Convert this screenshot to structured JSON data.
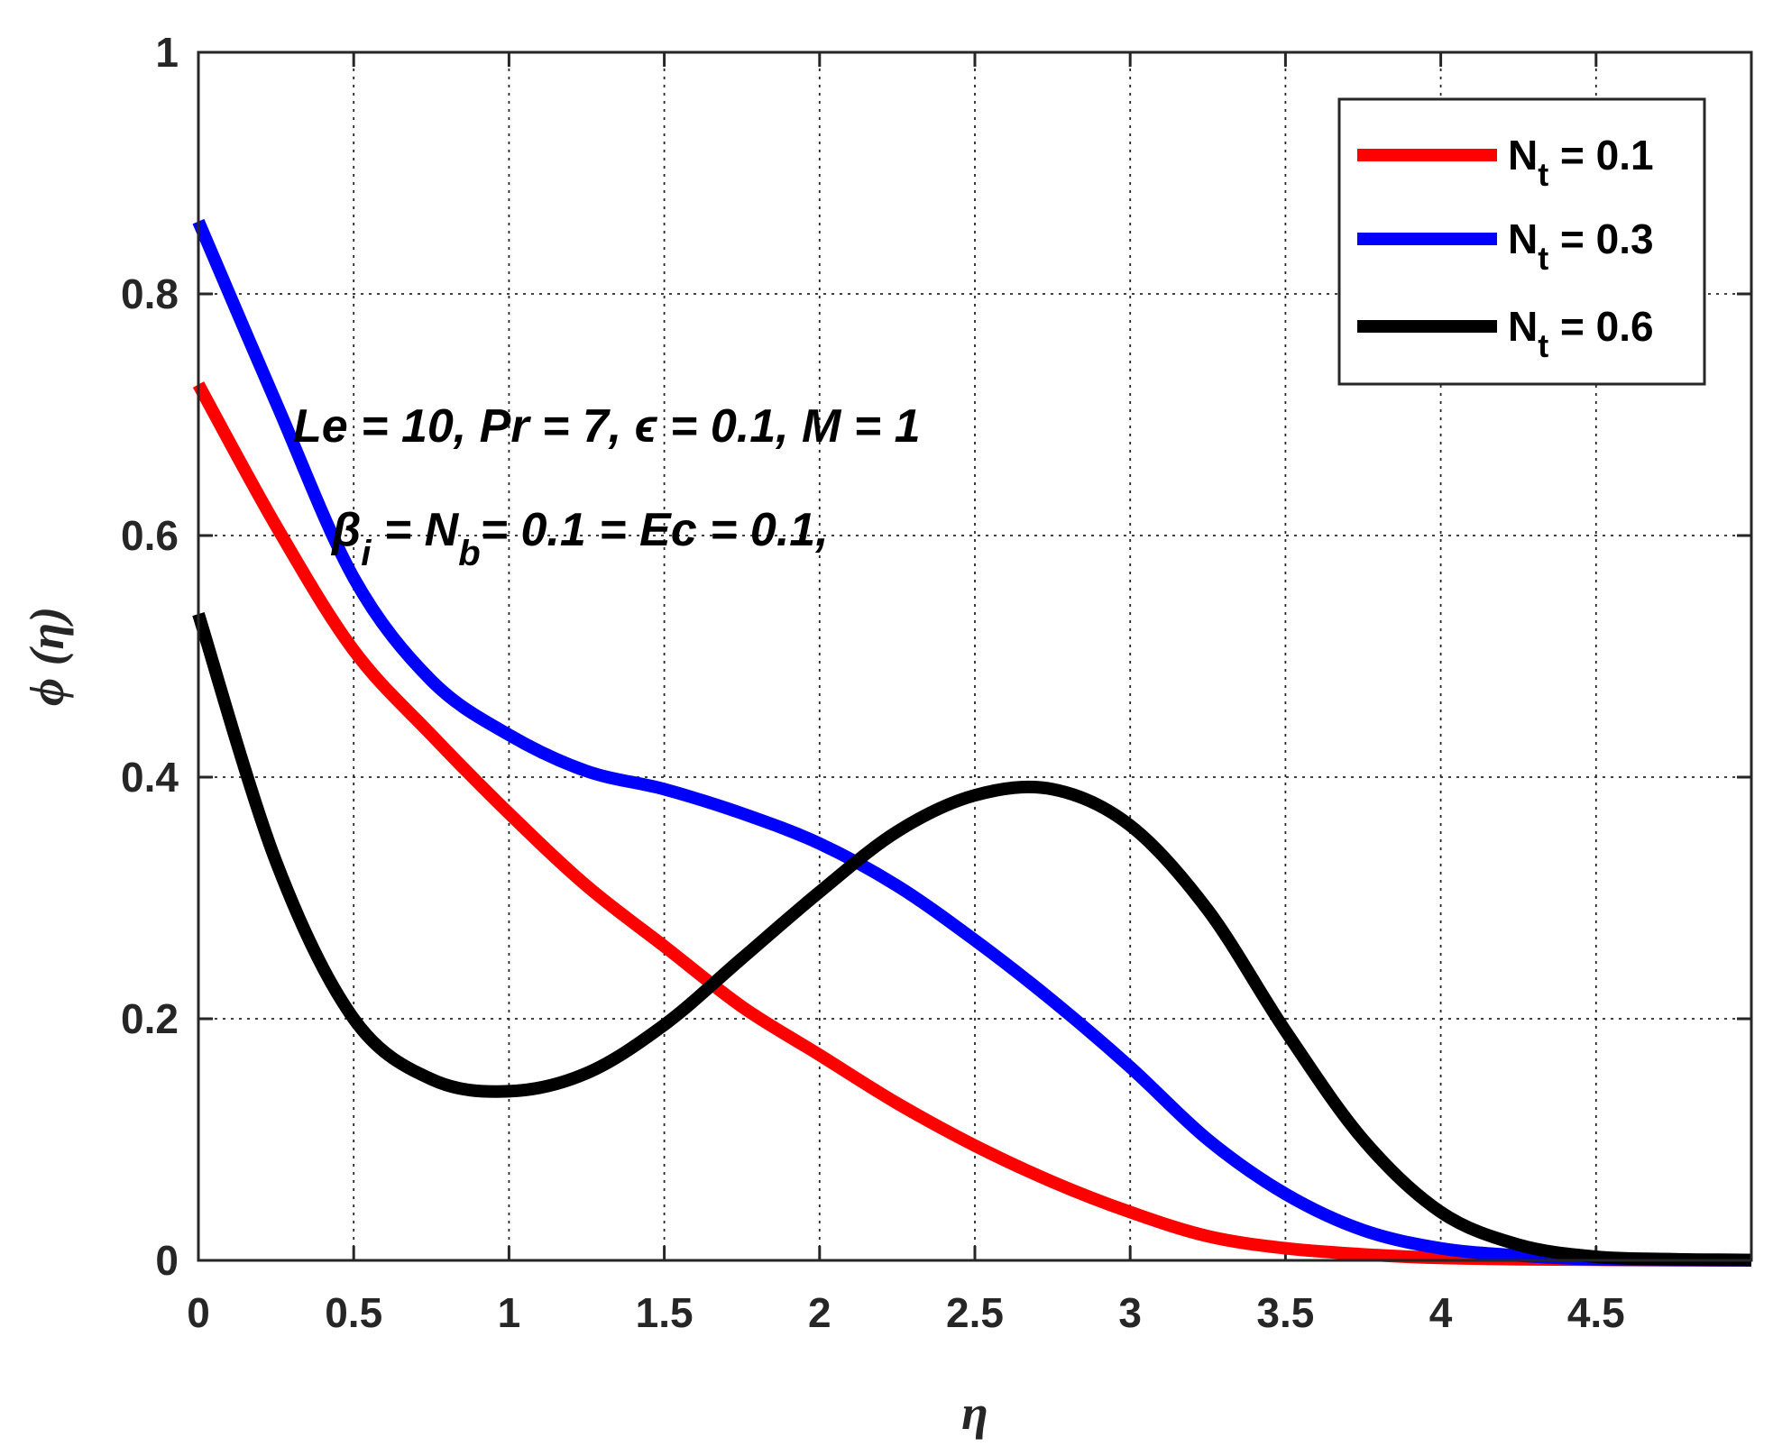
{
  "chart_data": {
    "type": "line",
    "title": "",
    "xlabel": "η",
    "ylabel": "ϕ (η)",
    "xlim": [
      0,
      5
    ],
    "ylim": [
      0,
      1
    ],
    "xticks": [
      0,
      0.5,
      1,
      1.5,
      2,
      2.5,
      3,
      3.5,
      4,
      4.5
    ],
    "xtick_labels": [
      "0",
      "0.5",
      "1",
      "1.5",
      "2",
      "2.5",
      "3",
      "3.5",
      "4",
      "4.5"
    ],
    "yticks": [
      0,
      0.2,
      0.4,
      0.6,
      0.8,
      1
    ],
    "ytick_labels": [
      "0",
      "0.2",
      "0.4",
      "0.6",
      "0.8",
      "1"
    ],
    "grid": true,
    "legend_position": "top-right",
    "annotations": {
      "line1": "Le = 10, Pr = 7,  ϵ = 0.1, M = 1",
      "line2": {
        "beta": "β",
        "beta_sub": "i",
        "mid": " = N",
        "nb_sub": "b",
        "rest": "= 0.1 = Ec = 0.1,"
      }
    },
    "series": [
      {
        "name": "N_t = 0.1",
        "label_main": "N",
        "label_sub": "t",
        "label_value": " = 0.1",
        "color": "#ff0000",
        "x": [
          0,
          0.25,
          0.5,
          0.75,
          1,
          1.25,
          1.5,
          1.75,
          2,
          2.25,
          2.5,
          2.75,
          3,
          3.25,
          3.5,
          3.75,
          4,
          4.25,
          4.5,
          4.75,
          5
        ],
        "y": [
          0.725,
          0.608,
          0.505,
          0.435,
          0.37,
          0.31,
          0.26,
          0.21,
          0.17,
          0.13,
          0.095,
          0.065,
          0.04,
          0.02,
          0.01,
          0.005,
          0.002,
          0.001,
          0.0005,
          0.0002,
          0.0001
        ]
      },
      {
        "name": "N_t = 0.3",
        "label_main": "N",
        "label_sub": "t",
        "label_value": " = 0.3",
        "color": "#0000ff",
        "x": [
          0,
          0.25,
          0.5,
          0.75,
          1,
          1.25,
          1.5,
          1.75,
          2,
          2.25,
          2.5,
          2.75,
          3,
          3.25,
          3.5,
          3.75,
          4,
          4.25,
          4.5,
          4.75,
          5
        ],
        "y": [
          0.86,
          0.71,
          0.565,
          0.48,
          0.435,
          0.405,
          0.39,
          0.37,
          0.345,
          0.31,
          0.265,
          0.215,
          0.16,
          0.1,
          0.055,
          0.025,
          0.01,
          0.004,
          0.001,
          0.0004,
          0.0001
        ]
      },
      {
        "name": "N_t = 0.6",
        "label_main": "N",
        "label_sub": "t",
        "label_value": " = 0.6",
        "color": "#000000",
        "x": [
          0,
          0.25,
          0.5,
          0.75,
          1,
          1.25,
          1.5,
          1.75,
          2,
          2.25,
          2.5,
          2.75,
          3,
          3.25,
          3.5,
          3.75,
          4,
          4.25,
          4.5,
          4.75,
          5
        ],
        "y": [
          0.535,
          0.33,
          0.2,
          0.15,
          0.14,
          0.155,
          0.195,
          0.25,
          0.305,
          0.355,
          0.385,
          0.39,
          0.36,
          0.29,
          0.19,
          0.1,
          0.04,
          0.013,
          0.003,
          0.001,
          0.0003
        ]
      }
    ]
  }
}
